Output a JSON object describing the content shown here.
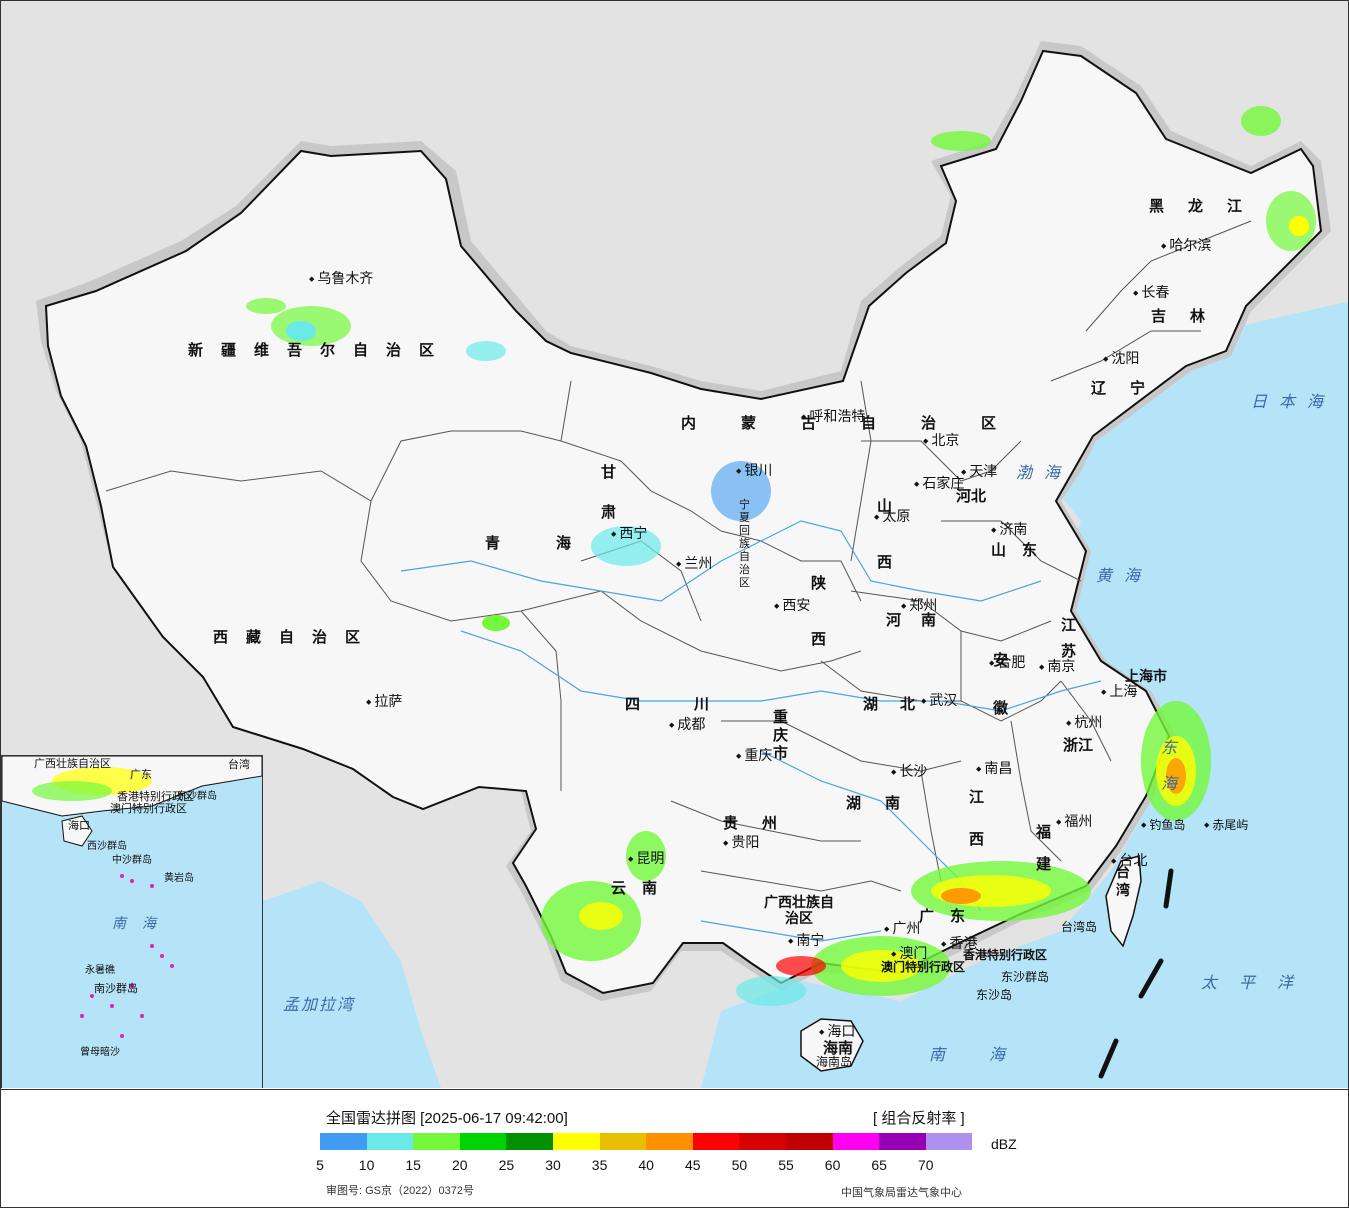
{
  "legend": {
    "title": "全国雷达拼图 [2025-06-17 09:42:00]",
    "product": "[ 组合反射率 ]",
    "unit": "dBZ",
    "colors": [
      "#3f9cf2",
      "#6ae9e8",
      "#73f83b",
      "#00d400",
      "#009000",
      "#ffff00",
      "#e6c000",
      "#ff9000",
      "#ff0000",
      "#d60000",
      "#c00000",
      "#ff00f0",
      "#9600b4",
      "#ad90f0"
    ],
    "ticks": [
      "5",
      "10",
      "15",
      "20",
      "25",
      "30",
      "35",
      "40",
      "45",
      "50",
      "55",
      "60",
      "65",
      "70"
    ],
    "approval": "审图号: GS京（2022）0372号",
    "source": "中国气象局雷达气象中心"
  },
  "regions": [
    {
      "name": "新疆维吾尔自治区",
      "style": "big"
    },
    {
      "name": "西藏自治区",
      "style": "big"
    },
    {
      "name": "青海",
      "style": "big"
    },
    {
      "name": "四川",
      "style": "big"
    },
    {
      "name": "甘肃",
      "style": "big"
    },
    {
      "name": "内蒙古自治区",
      "style": "big"
    },
    {
      "name": "黑龙江",
      "style": "big"
    },
    {
      "name": "吉林",
      "style": "big"
    },
    {
      "name": "辽宁",
      "style": "big"
    },
    {
      "name": "河北",
      "style": "big"
    },
    {
      "name": "山西",
      "style": "big"
    },
    {
      "name": "陕西",
      "style": "big"
    },
    {
      "name": "河南",
      "style": "big"
    },
    {
      "name": "山东",
      "style": "big"
    },
    {
      "name": "江苏",
      "style": "big"
    },
    {
      "name": "安徽",
      "style": "big"
    },
    {
      "name": "湖北",
      "style": "big"
    },
    {
      "name": "重庆市",
      "style": "big"
    },
    {
      "name": "贵州",
      "style": "big"
    },
    {
      "name": "云南",
      "style": "big"
    },
    {
      "name": "湖南",
      "style": "big"
    },
    {
      "name": "江西",
      "style": "big"
    },
    {
      "name": "浙江",
      "style": "big"
    },
    {
      "name": "福建",
      "style": "big"
    },
    {
      "name": "广西壮族自治区",
      "style": "big"
    },
    {
      "name": "广东",
      "style": "big"
    },
    {
      "name": "海南",
      "style": "big"
    },
    {
      "name": "台湾",
      "style": "big"
    },
    {
      "name": "上海市",
      "style": "big"
    },
    {
      "name": "宁夏回族自治区",
      "style": "small"
    },
    {
      "name": "香港特别行政区",
      "style": "big"
    },
    {
      "name": "澳门特别行政区",
      "style": "big"
    }
  ],
  "cities": [
    "乌鲁木齐",
    "拉萨",
    "西宁",
    "兰州",
    "银川",
    "成都",
    "重庆",
    "昆明",
    "贵阳",
    "南宁",
    "海口",
    "广州",
    "香港",
    "澳门",
    "长沙",
    "南昌",
    "福州",
    "台北",
    "杭州",
    "上海",
    "南京",
    "合肥",
    "武汉",
    "郑州",
    "西安",
    "太原",
    "石家庄",
    "济南",
    "天津",
    "北京",
    "呼和浩特",
    "沈阳",
    "长春",
    "哈尔滨"
  ],
  "seas": [
    "日本海",
    "渤海",
    "黄海",
    "东海",
    "太平洋",
    "南海",
    "孟加拉湾"
  ],
  "islands": [
    "台湾岛",
    "赤尾屿",
    "钓鱼岛",
    "东沙群岛",
    "东沙岛",
    "海南岛"
  ],
  "inset": {
    "labels": [
      "广西壮族自治区",
      "台湾",
      "广东",
      "香港特别行政区",
      "澳门特别行政区",
      "海口",
      "东沙群岛",
      "西沙群岛",
      "中沙群岛",
      "黄岩岛",
      "南海",
      "永暑礁",
      "南沙群岛",
      "曾母暗沙"
    ]
  }
}
